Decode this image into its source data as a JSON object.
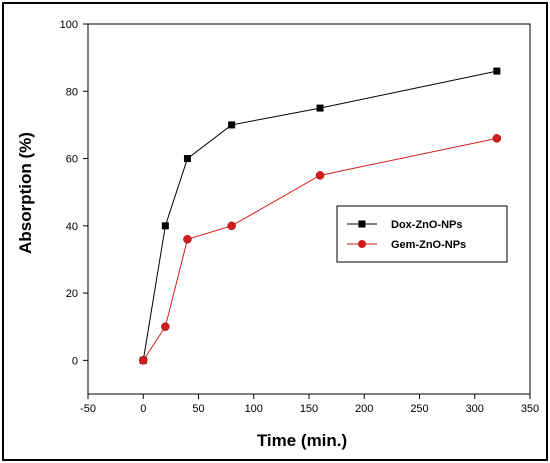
{
  "chart_data": {
    "type": "line",
    "title": "",
    "xlabel": "Time (min.)",
    "ylabel": "Absorption (%)",
    "xlim": [
      -50,
      350
    ],
    "ylim": [
      -10,
      100
    ],
    "xticks": [
      -50,
      0,
      50,
      100,
      150,
      200,
      250,
      300,
      350
    ],
    "yticks": [
      0,
      20,
      40,
      60,
      80,
      100
    ],
    "legend_position": "right",
    "grid": false,
    "series": [
      {
        "name": "Dox-ZnO-NPs",
        "color": "#000000",
        "marker": "square",
        "x": [
          0,
          20,
          40,
          80,
          160,
          320
        ],
        "y": [
          0,
          40,
          60,
          70,
          75,
          86
        ]
      },
      {
        "name": "Gem-ZnO-NPs",
        "color": "#d11d1d",
        "marker": "circle",
        "x": [
          0,
          20,
          40,
          80,
          160,
          320
        ],
        "y": [
          0,
          10,
          36,
          40,
          55,
          66
        ]
      }
    ]
  }
}
